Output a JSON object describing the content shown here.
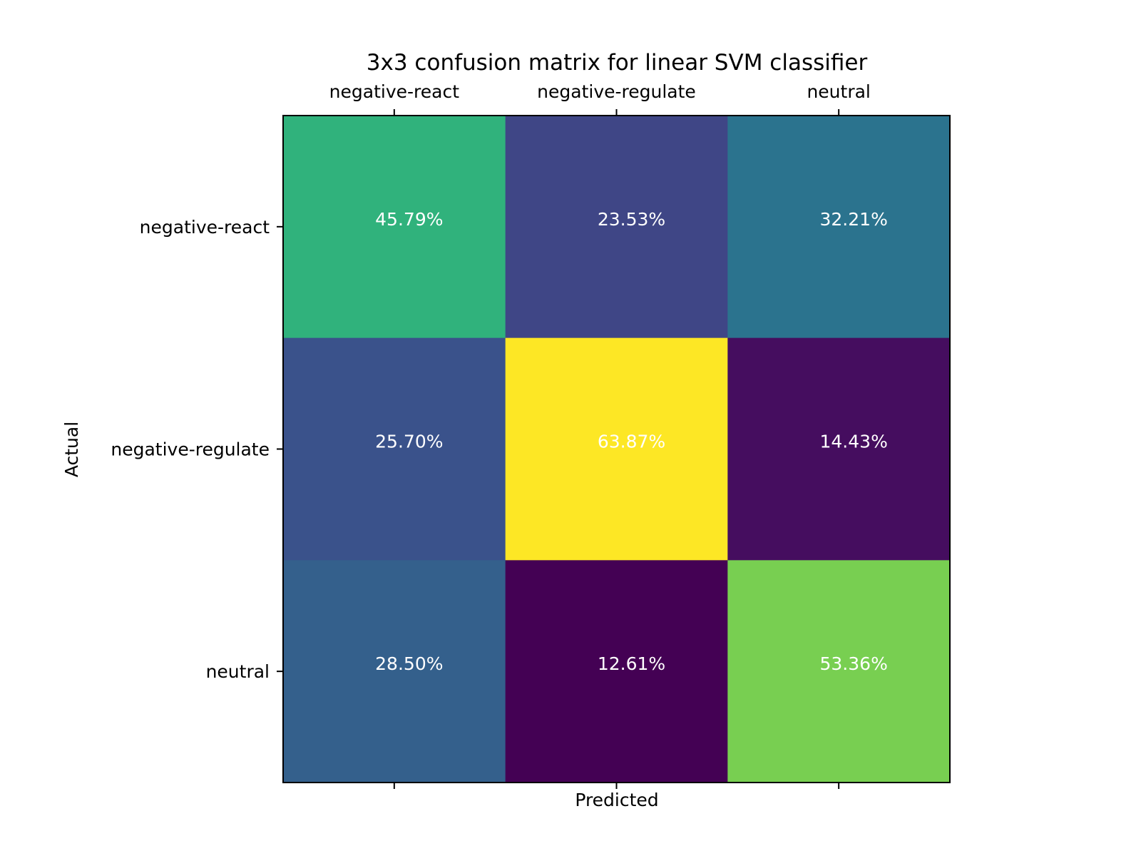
{
  "chart_data": {
    "type": "heatmap",
    "title": "3x3 confusion matrix for linear SVM classifier",
    "xlabel": "Predicted",
    "ylabel": "Actual",
    "x_categories": [
      "negative-react",
      "negative-regulate",
      "neutral"
    ],
    "y_categories": [
      "negative-react",
      "negative-regulate",
      "neutral"
    ],
    "values": [
      [
        45.79,
        23.53,
        32.21
      ],
      [
        25.7,
        63.87,
        14.43
      ],
      [
        28.5,
        12.61,
        53.36
      ]
    ],
    "value_labels": [
      [
        "45.79%",
        "23.53%",
        "32.21%"
      ],
      [
        "25.70%",
        "63.87%",
        "14.43%"
      ],
      [
        "28.50%",
        "12.61%",
        "53.36%"
      ]
    ],
    "colormap": "viridis",
    "x_tick_position": "top",
    "grid": false
  }
}
